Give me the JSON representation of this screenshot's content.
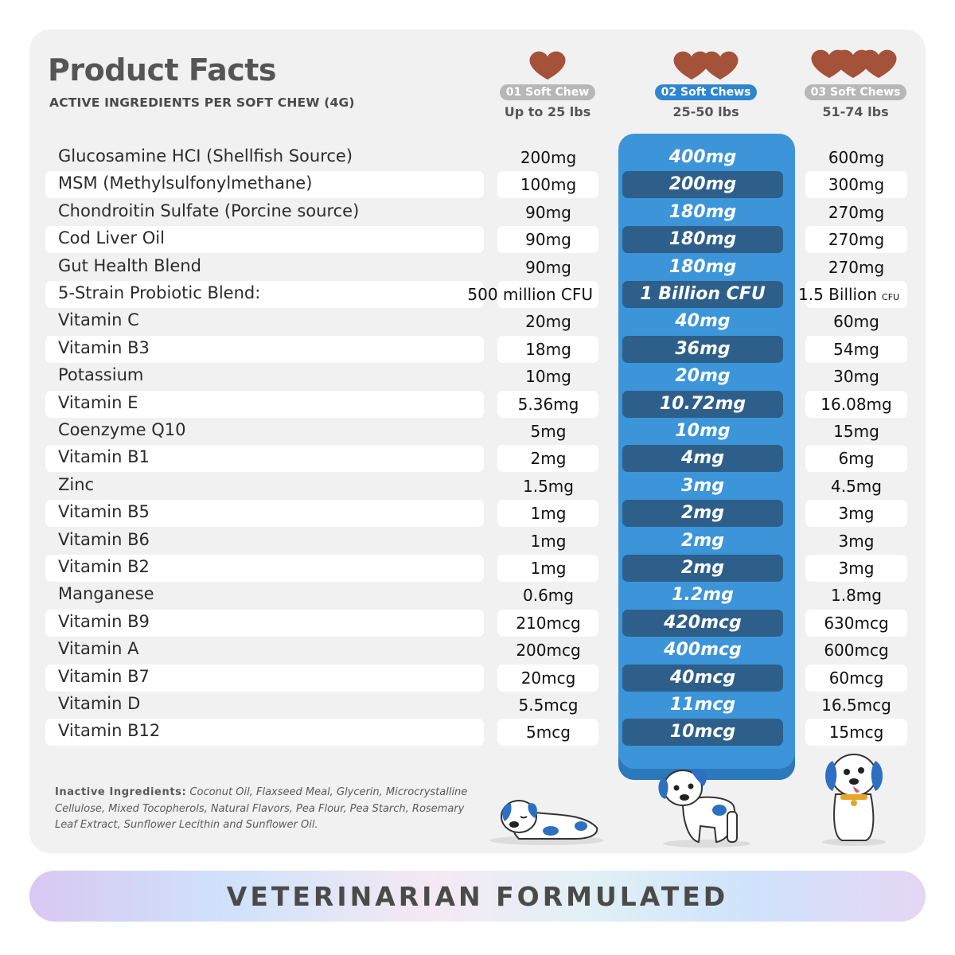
{
  "header": {
    "title": "Product Facts",
    "subtitle": "ACTIVE INGREDIENTS PER SOFT CHEW (4G)"
  },
  "columns": [
    {
      "badge": "01 Soft Chew",
      "weight": "Up to 25 lbs",
      "chews": 1
    },
    {
      "badge": "02 Soft Chews",
      "weight": "25-50 lbs",
      "chews": 2
    },
    {
      "badge": "03 Soft Chews",
      "weight": "51-74 lbs",
      "chews": 3
    }
  ],
  "rows": [
    {
      "name": "Glucosamine HCI (Shellfish Source)",
      "v1": "200mg",
      "v2": "400mg",
      "v3": "600mg"
    },
    {
      "name": "MSM (Methylsulfonylmethane)",
      "v1": "100mg",
      "v2": "200mg",
      "v3": "300mg"
    },
    {
      "name": "Chondroitin Sulfate (Porcine source)",
      "v1": "90mg",
      "v2": "180mg",
      "v3": "270mg"
    },
    {
      "name": "Cod Liver Oil",
      "v1": "90mg",
      "v2": "180mg",
      "v3": "270mg"
    },
    {
      "name": "Gut Health Blend",
      "v1": "90mg",
      "v2": "180mg",
      "v3": "270mg"
    },
    {
      "name": "5-Strain Probiotic Blend:",
      "v1": "500 million CFU",
      "v2": "1 Billion CFU",
      "v3": "1.5 Billion",
      "v3_unit": "CFU"
    },
    {
      "name": "Vitamin C",
      "v1": "20mg",
      "v2": "40mg",
      "v3": "60mg"
    },
    {
      "name": "Vitamin B3",
      "v1": "18mg",
      "v2": "36mg",
      "v3": "54mg"
    },
    {
      "name": "Potassium",
      "v1": "10mg",
      "v2": "20mg",
      "v3": "30mg"
    },
    {
      "name": "Vitamin E",
      "v1": "5.36mg",
      "v2": "10.72mg",
      "v3": "16.08mg"
    },
    {
      "name": "Coenzyme Q10",
      "v1": "5mg",
      "v2": "10mg",
      "v3": "15mg"
    },
    {
      "name": "Vitamin B1",
      "v1": "2mg",
      "v2": "4mg",
      "v3": "6mg"
    },
    {
      "name": "Zinc",
      "v1": "1.5mg",
      "v2": "3mg",
      "v3": "4.5mg"
    },
    {
      "name": "Vitamin B5",
      "v1": "1mg",
      "v2": "2mg",
      "v3": "3mg"
    },
    {
      "name": "Vitamin B6",
      "v1": "1mg",
      "v2": "2mg",
      "v3": "3mg"
    },
    {
      "name": "Vitamin B2",
      "v1": "1mg",
      "v2": "2mg",
      "v3": "3mg"
    },
    {
      "name": "Manganese",
      "v1": "0.6mg",
      "v2": "1.2mg",
      "v3": "1.8mg"
    },
    {
      "name": "Vitamin B9",
      "v1": "210mcg",
      "v2": "420mcg",
      "v3": "630mcg"
    },
    {
      "name": "Vitamin A",
      "v1": "200mcg",
      "v2": "400mcg",
      "v3": "600mcg"
    },
    {
      "name": "Vitamin B7",
      "v1": "20mcg",
      "v2": "40mcg",
      "v3": "60mcg"
    },
    {
      "name": "Vitamin D",
      "v1": "5.5mcg",
      "v2": "11mcg",
      "v3": "16.5mcg"
    },
    {
      "name": "Vitamin B12",
      "v1": "5mcg",
      "v2": "10mcg",
      "v3": "15mcg"
    }
  ],
  "inactive": {
    "label": "Inactive Ingredients:",
    "text": "Coconut Oil, Flaxseed Meal, Glycerin, Microcrystalline Cellulose, Mixed Tocopherols, Natural Flavors, Pea Flour, Pea Starch, Rosemary Leaf Extract, Sunflower Lecithin and Sunflower Oil."
  },
  "banner": "VETERINARIAN FORMULATED",
  "colors": {
    "card": "#f1f1f1",
    "highlight": "#3c94d9",
    "highlight_row": "#2e5f8a",
    "chew": "#a5523a",
    "badge_grey": "#b7b7b7",
    "badge_blue": "#2f86cf"
  }
}
